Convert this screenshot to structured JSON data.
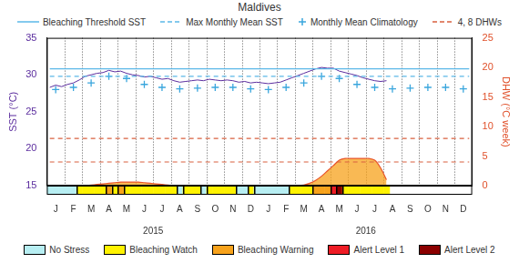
{
  "chart_data": {
    "type": "line",
    "title": "Maldives",
    "categories": [
      null,
      "J",
      null,
      null,
      "F",
      null,
      null,
      "M",
      null,
      null,
      "A",
      null,
      null,
      "M",
      null,
      null,
      "J",
      null,
      null,
      "J",
      null,
      null,
      "A",
      null,
      null,
      "S",
      null,
      null,
      "O",
      null,
      null,
      "N",
      null,
      null,
      "D",
      null,
      null,
      "J",
      null,
      null,
      "F",
      null,
      null,
      "M",
      null,
      null,
      "A",
      null,
      null,
      "M",
      null,
      null,
      "J",
      null,
      null,
      "J",
      null,
      null,
      "A",
      null,
      null,
      "S",
      null,
      null,
      "O",
      null,
      null,
      "N",
      null,
      null,
      "D",
      null
    ],
    "groups": [
      {
        "label": "2015",
        "months": 12
      },
      {
        "label": "2016",
        "months": 12
      }
    ],
    "y_label": "SST (°C)",
    "y2_label": "DHW (°C week)",
    "ylim": [
      15,
      35
    ],
    "yticks": [
      15,
      20,
      25,
      30,
      35
    ],
    "y2lim": [
      0,
      25
    ],
    "y2ticks": [
      0,
      5,
      10,
      15,
      20,
      25
    ],
    "series": [
      {
        "color": "#5b2d9e",
        "type": "line",
        "axis": "y",
        "values": [
          28.3,
          28.6,
          28.4,
          28.7,
          28.9,
          29.3,
          29.8,
          30.0,
          30.2,
          30.3,
          30.6,
          30.4,
          30.5,
          30.2,
          30.0,
          29.9,
          29.7,
          29.8,
          29.6,
          29.4,
          29.5,
          29.2,
          29.0,
          29.1,
          29.2,
          29.3,
          29.2,
          29.4,
          29.3,
          29.2,
          29.3,
          29.2,
          29.0,
          29.1,
          28.9,
          29.0,
          28.9,
          28.8,
          28.9,
          29.0,
          29.3,
          29.6,
          29.9,
          30.2,
          30.5,
          30.8,
          31.0,
          30.9,
          30.9,
          30.5,
          30.3,
          30.1,
          29.9,
          29.6,
          29.4,
          29.2,
          29.1,
          29.2,
          null,
          null,
          null,
          null,
          null,
          null,
          null,
          null,
          null,
          null,
          null,
          null,
          null,
          null
        ]
      },
      {
        "name": "Monthly Mean Climatology",
        "color": "#3aa6dd",
        "type": "scatter",
        "marker": "cross",
        "axis": "y",
        "values": [
          null,
          28.0,
          null,
          null,
          28.3,
          null,
          null,
          28.9,
          null,
          null,
          29.8,
          null,
          null,
          29.5,
          null,
          null,
          28.7,
          null,
          null,
          28.3,
          null,
          null,
          28.1,
          null,
          null,
          28.2,
          null,
          null,
          28.3,
          null,
          null,
          28.3,
          null,
          null,
          28.1,
          null,
          null,
          28.0,
          null,
          null,
          28.3,
          null,
          null,
          28.9,
          null,
          null,
          29.8,
          null,
          null,
          29.5,
          null,
          null,
          28.7,
          null,
          null,
          28.3,
          null,
          null,
          28.1,
          null,
          null,
          28.2,
          null,
          null,
          28.3,
          null,
          null,
          28.3,
          null,
          null,
          28.1,
          null
        ]
      },
      {
        "color": "#e8542a",
        "type": "area",
        "axis": "y2",
        "values": [
          0,
          0,
          0,
          0,
          0,
          0,
          0,
          0.1,
          0.2,
          0.3,
          0.4,
          0.5,
          0.6,
          0.6,
          0.6,
          0.6,
          0.5,
          0.4,
          0.3,
          0.2,
          0.1,
          0,
          0,
          0,
          0,
          0,
          0,
          0,
          0,
          0,
          0,
          0,
          0,
          0,
          0,
          0,
          0,
          0,
          0,
          0,
          0,
          0,
          0,
          0.1,
          0.4,
          0.9,
          1.6,
          2.5,
          3.4,
          4.3,
          4.6,
          4.6,
          4.6,
          4.6,
          4.6,
          4.3,
          3.0,
          1.0,
          null,
          null,
          null,
          null,
          null,
          null,
          null,
          null,
          null,
          null,
          null,
          null,
          null,
          null
        ]
      }
    ],
    "reference_lines": [
      {
        "name": "Bleaching Threshold SST",
        "value": 30.8,
        "axis": "y",
        "color": "#5bb8e8",
        "line_style": "solid"
      },
      {
        "name": "Max Monthly Mean SST",
        "value": 29.8,
        "axis": "y",
        "color": "#5bb8e8",
        "line_style": "dashed"
      },
      {
        "name": "4, 8 DHWs",
        "values": [
          4,
          8
        ],
        "axis": "y2",
        "color": "#d9603f",
        "line_style": "dashed"
      }
    ],
    "stress_levels": [
      {
        "name": "No Stress",
        "color": "#b7eef2"
      },
      {
        "name": "Bleaching Watch",
        "color": "#fff200"
      },
      {
        "name": "Bleaching Warning",
        "color": "#f7a21b"
      },
      {
        "name": "Alert Level 1",
        "color": "#ee1c25"
      },
      {
        "name": "Alert Level 2",
        "color": "#8b0000"
      }
    ],
    "stress": [
      0,
      0,
      0,
      0,
      0,
      1,
      1,
      1,
      1,
      1,
      2,
      1,
      2,
      1,
      1,
      1,
      1,
      1,
      1,
      1,
      1,
      1,
      0,
      1,
      1,
      1,
      0,
      1,
      1,
      1,
      1,
      1,
      0,
      0,
      1,
      0,
      0,
      0,
      0,
      0,
      0,
      1,
      1,
      1,
      1,
      2,
      2,
      2,
      3,
      4,
      1,
      1,
      1,
      1,
      1,
      1,
      1,
      1,
      null,
      null,
      null,
      null,
      null,
      null,
      null,
      null,
      null,
      null,
      null,
      null,
      null,
      null
    ],
    "legend": "top",
    "grid": true
  }
}
